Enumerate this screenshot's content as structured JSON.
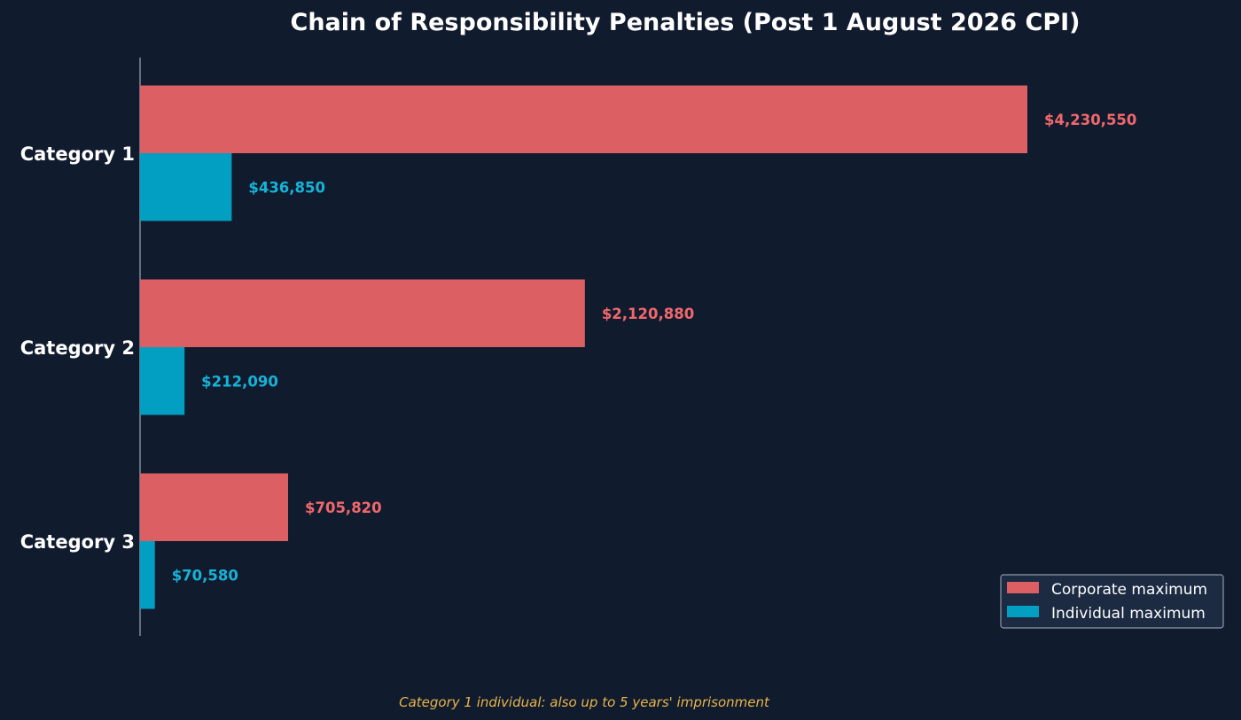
{
  "colors": {
    "background": "#111b2e",
    "corporate_bar": "#dc5f63",
    "corporate_label": "#f0686c",
    "individual_bar": "#039fc3",
    "individual_label": "#16b3d8",
    "note": "#e8b54a"
  },
  "note": "Category 1 individual: also up to 5 years' imprisonment",
  "chart_data": {
    "type": "bar",
    "orientation": "horizontal",
    "title": "Chain of Responsibility Penalties (Post 1 August 2026 CPI)",
    "categories": [
      "Category 1",
      "Category 2",
      "Category 3"
    ],
    "series": [
      {
        "name": "Corporate maximum",
        "values": [
          4230550,
          2120880,
          705820
        ],
        "labels": [
          "$4,230,550",
          "$2,120,880",
          "$705,820"
        ]
      },
      {
        "name": "Individual maximum",
        "values": [
          436850,
          212090,
          70580
        ],
        "labels": [
          "$436,850",
          "$212,090",
          "$70,580"
        ]
      }
    ],
    "xlim": [
      0,
      4230550
    ],
    "x_axis_visible": false,
    "grid": false,
    "legend_position": "bottom-right"
  }
}
